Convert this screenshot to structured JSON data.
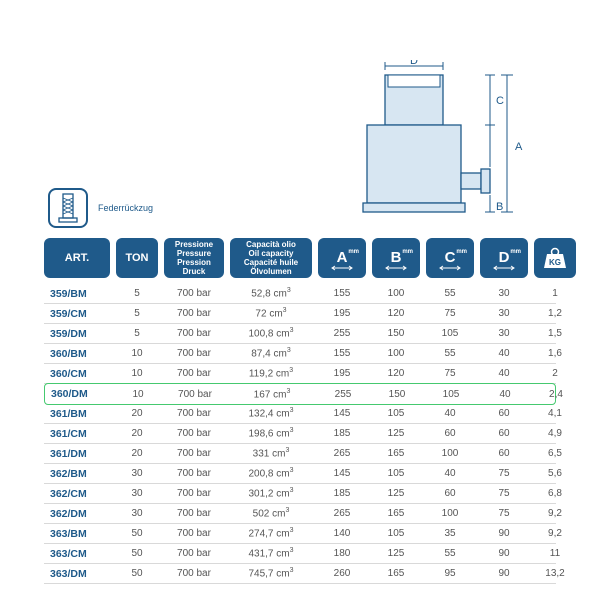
{
  "feature": {
    "label": "Federrückzug"
  },
  "diagram": {
    "labels": {
      "A": "A",
      "B": "B",
      "C": "C",
      "D": "D"
    },
    "stroke": "#1f5a8a",
    "fill_light": "#d7e6f2"
  },
  "table": {
    "header": {
      "art": "ART.",
      "ton": "TON",
      "pressure_lines": [
        "Pressione",
        "Pressure",
        "Pression",
        "Druck"
      ],
      "oil_lines": [
        "Capacità olio",
        "Oil capacity",
        "Capacité huile",
        "Ölvolumen"
      ],
      "dimA": "A",
      "dimB": "B",
      "dimC": "C",
      "dimD": "D",
      "dim_unit": "mm",
      "kg": "KG"
    },
    "rows": [
      {
        "art": "359/BM",
        "ton": "5",
        "pressure": "700 bar",
        "oil": "52,8 cm³",
        "A": "155",
        "B": "100",
        "C": "55",
        "D": "30",
        "kg": "1",
        "hl": false
      },
      {
        "art": "359/CM",
        "ton": "5",
        "pressure": "700 bar",
        "oil": "72 cm³",
        "A": "195",
        "B": "120",
        "C": "75",
        "D": "30",
        "kg": "1,2",
        "hl": false
      },
      {
        "art": "359/DM",
        "ton": "5",
        "pressure": "700 bar",
        "oil": "100,8 cm³",
        "A": "255",
        "B": "150",
        "C": "105",
        "D": "30",
        "kg": "1,5",
        "hl": false
      },
      {
        "art": "360/BM",
        "ton": "10",
        "pressure": "700 bar",
        "oil": "87,4 cm³",
        "A": "155",
        "B": "100",
        "C": "55",
        "D": "40",
        "kg": "1,6",
        "hl": false
      },
      {
        "art": "360/CM",
        "ton": "10",
        "pressure": "700 bar",
        "oil": "119,2 cm³",
        "A": "195",
        "B": "120",
        "C": "75",
        "D": "40",
        "kg": "2",
        "hl": false
      },
      {
        "art": "360/DM",
        "ton": "10",
        "pressure": "700 bar",
        "oil": "167 cm³",
        "A": "255",
        "B": "150",
        "C": "105",
        "D": "40",
        "kg": "2,4",
        "hl": true
      },
      {
        "art": "361/BM",
        "ton": "20",
        "pressure": "700 bar",
        "oil": "132,4 cm³",
        "A": "145",
        "B": "105",
        "C": "40",
        "D": "60",
        "kg": "4,1",
        "hl": false
      },
      {
        "art": "361/CM",
        "ton": "20",
        "pressure": "700 bar",
        "oil": "198,6 cm³",
        "A": "185",
        "B": "125",
        "C": "60",
        "D": "60",
        "kg": "4,9",
        "hl": false
      },
      {
        "art": "361/DM",
        "ton": "20",
        "pressure": "700 bar",
        "oil": "331 cm³",
        "A": "265",
        "B": "165",
        "C": "100",
        "D": "60",
        "kg": "6,5",
        "hl": false
      },
      {
        "art": "362/BM",
        "ton": "30",
        "pressure": "700 bar",
        "oil": "200,8 cm³",
        "A": "145",
        "B": "105",
        "C": "40",
        "D": "75",
        "kg": "5,6",
        "hl": false
      },
      {
        "art": "362/CM",
        "ton": "30",
        "pressure": "700 bar",
        "oil": "301,2 cm³",
        "A": "185",
        "B": "125",
        "C": "60",
        "D": "75",
        "kg": "6,8",
        "hl": false
      },
      {
        "art": "362/DM",
        "ton": "30",
        "pressure": "700 bar",
        "oil": "502 cm³",
        "A": "265",
        "B": "165",
        "C": "100",
        "D": "75",
        "kg": "9,2",
        "hl": false
      },
      {
        "art": "363/BM",
        "ton": "50",
        "pressure": "700 bar",
        "oil": "274,7 cm³",
        "A": "140",
        "B": "105",
        "C": "35",
        "D": "90",
        "kg": "9,2",
        "hl": false
      },
      {
        "art": "363/CM",
        "ton": "50",
        "pressure": "700 bar",
        "oil": "431,7 cm³",
        "A": "180",
        "B": "125",
        "C": "55",
        "D": "90",
        "kg": "11",
        "hl": false
      },
      {
        "art": "363/DM",
        "ton": "50",
        "pressure": "700 bar",
        "oil": "745,7 cm³",
        "A": "260",
        "B": "165",
        "C": "95",
        "D": "90",
        "kg": "13,2",
        "hl": false
      }
    ]
  }
}
